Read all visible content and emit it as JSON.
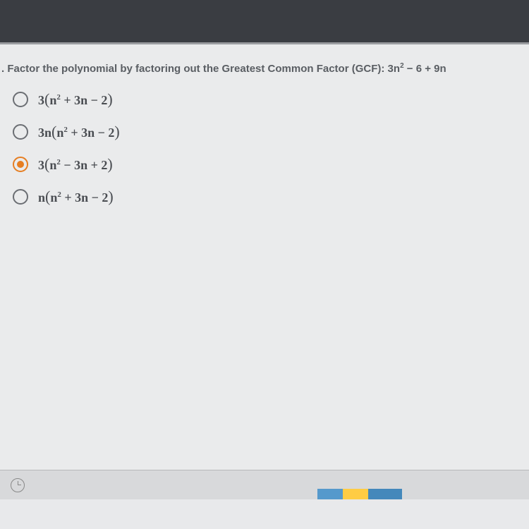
{
  "question": {
    "prompt_prefix": ". Factor the polynomial by factoring out the Greatest Common Factor (GCF):",
    "expression_html": "3n<sup>2</sup> − 6 + 9n"
  },
  "options": [
    {
      "id": "option-a",
      "selected": false,
      "label_html": "3<span class='paren'>(</span>n<sup>2</sup> + 3n − 2<span class='paren'>)</span>"
    },
    {
      "id": "option-b",
      "selected": false,
      "label_html": "3n<span class='paren'>(</span>n<sup>2</sup> + 3n − 2<span class='paren'>)</span>"
    },
    {
      "id": "option-c",
      "selected": true,
      "label_html": "3<span class='paren'>(</span>n<sup>2</sup> − 3n + 2<span class='paren'>)</span>"
    },
    {
      "id": "option-d",
      "selected": false,
      "label_html": "n<span class='paren'>(</span>n<sup>2</sup> + 3n − 2<span class='paren'>)</span>"
    }
  ],
  "colors": {
    "top_bar": "#3a3d42",
    "background": "#eaebec",
    "radio_border": "#6b6e73",
    "radio_selected": "#e67e22",
    "text": "#4a4d52",
    "question_text": "#5a5e63",
    "bottom_bar": "#d8d9db"
  }
}
